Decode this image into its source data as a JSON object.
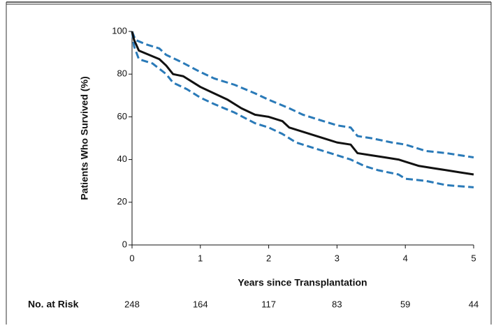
{
  "chart_data": {
    "type": "line",
    "x_label": "Years since Transplantation",
    "y_label": "Patients Who Survived (%)",
    "xlim": [
      0,
      5
    ],
    "xticks": [
      0,
      1,
      2,
      3,
      4,
      5
    ],
    "ylim": [
      0,
      100
    ],
    "yticks": [
      0,
      20,
      40,
      60,
      80,
      100
    ],
    "series": [
      {
        "color": "#2a7ab8",
        "dashed": true,
        "x": [
          0,
          0.05,
          0.2,
          0.4,
          0.5,
          0.7,
          1.0,
          1.2,
          1.5,
          1.8,
          2.0,
          2.3,
          2.5,
          2.8,
          3.0,
          3.2,
          3.3,
          3.5,
          3.8,
          4.0,
          4.3,
          4.6,
          5.0
        ],
        "values": [
          100,
          96,
          94,
          92,
          89,
          86,
          81,
          78,
          75,
          71,
          68,
          64,
          61,
          58,
          56,
          55,
          51,
          50,
          48,
          47,
          44,
          43,
          41
        ]
      },
      {
        "color": "#2a7ab8",
        "dashed": true,
        "x": [
          0,
          0.03,
          0.1,
          0.3,
          0.5,
          0.6,
          0.8,
          1.0,
          1.2,
          1.5,
          1.8,
          2.0,
          2.2,
          2.4,
          2.7,
          3.0,
          3.2,
          3.4,
          3.6,
          3.9,
          4.0,
          4.3,
          4.6,
          5.0
        ],
        "values": [
          100,
          93,
          87,
          85,
          80,
          76,
          73,
          69,
          66,
          62,
          57,
          55,
          52,
          48,
          45,
          42,
          40,
          37,
          35,
          33,
          31,
          30,
          28,
          27
        ]
      },
      {
        "color": "#111111",
        "dashed": false,
        "x": [
          0,
          0.03,
          0.1,
          0.25,
          0.4,
          0.5,
          0.6,
          0.75,
          0.9,
          1.0,
          1.2,
          1.4,
          1.6,
          1.8,
          2.0,
          2.2,
          2.3,
          2.5,
          2.7,
          2.9,
          3.0,
          3.2,
          3.3,
          3.5,
          3.7,
          3.9,
          4.0,
          4.2,
          4.4,
          4.6,
          4.8,
          5.0
        ],
        "values": [
          100,
          96,
          91,
          89,
          87,
          84,
          80,
          79,
          76,
          74,
          71,
          68,
          64,
          61,
          60,
          58,
          55,
          53,
          51,
          49,
          48,
          47,
          43,
          42,
          41,
          40,
          39,
          37,
          36,
          35,
          34,
          33
        ]
      }
    ],
    "risk_table": {
      "label": "No. at Risk",
      "values": [
        248,
        164,
        117,
        83,
        59,
        44
      ]
    }
  }
}
